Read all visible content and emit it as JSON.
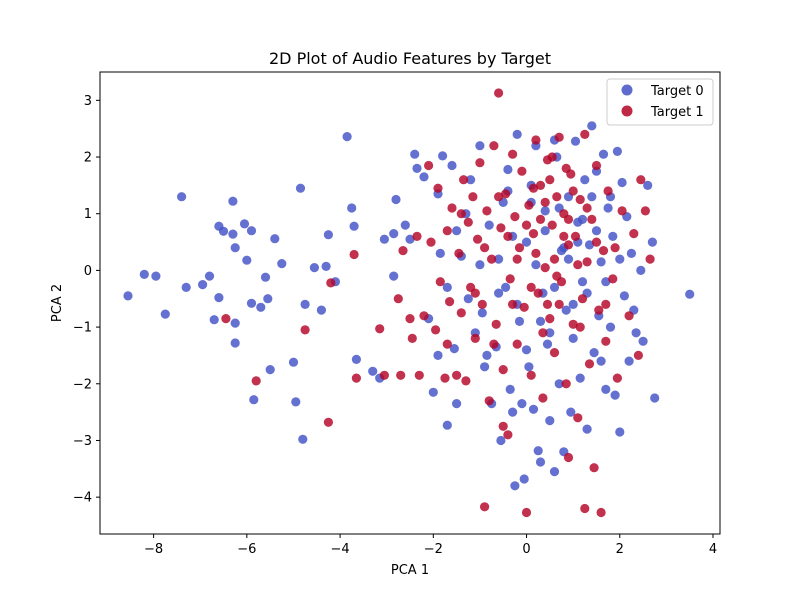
{
  "chart_data": {
    "type": "scatter",
    "title": "2D Plot of Audio Features by Target",
    "xlabel": "PCA 1",
    "ylabel": "PCA 2",
    "xlim": [
      -9.15,
      4.15
    ],
    "ylim": [
      -4.65,
      3.5
    ],
    "xticks": [
      -8,
      -6,
      -4,
      -2,
      0,
      2,
      4
    ],
    "yticks": [
      -4,
      -3,
      -2,
      -1,
      0,
      1,
      2,
      3
    ],
    "xtick_labels": [
      "−8",
      "−6",
      "−4",
      "−2",
      "0",
      "2",
      "4"
    ],
    "ytick_labels": [
      "−4",
      "−3",
      "−2",
      "−1",
      "0",
      "1",
      "2",
      "3"
    ],
    "grid": false,
    "legend_position": "top-right",
    "series": [
      {
        "name": "Target 0",
        "color": "#4352c6",
        "points": [
          [
            -8.55,
            -0.45
          ],
          [
            -8.2,
            -0.07
          ],
          [
            -7.95,
            -0.1
          ],
          [
            -7.75,
            -0.77
          ],
          [
            -7.4,
            1.3
          ],
          [
            -7.3,
            -0.3
          ],
          [
            -6.95,
            -0.25
          ],
          [
            -6.8,
            -0.1
          ],
          [
            -6.7,
            -0.87
          ],
          [
            -6.6,
            0.78
          ],
          [
            -6.6,
            -0.48
          ],
          [
            -6.5,
            0.69
          ],
          [
            -6.3,
            1.22
          ],
          [
            -6.3,
            0.64
          ],
          [
            -6.25,
            0.4
          ],
          [
            -6.25,
            -0.93
          ],
          [
            -6.25,
            -1.28
          ],
          [
            -6.05,
            0.82
          ],
          [
            -6.0,
            0.18
          ],
          [
            -5.9,
            0.7
          ],
          [
            -5.9,
            -0.58
          ],
          [
            -5.85,
            -2.28
          ],
          [
            -5.7,
            -0.65
          ],
          [
            -5.6,
            -0.12
          ],
          [
            -5.55,
            -0.5
          ],
          [
            -5.5,
            -1.75
          ],
          [
            -5.4,
            0.56
          ],
          [
            -5.25,
            0.12
          ],
          [
            -5.0,
            -1.62
          ],
          [
            -4.95,
            -2.32
          ],
          [
            -4.85,
            1.45
          ],
          [
            -4.8,
            -2.98
          ],
          [
            -4.75,
            -0.6
          ],
          [
            -4.55,
            0.05
          ],
          [
            -4.4,
            -0.7
          ],
          [
            -4.3,
            0.07
          ],
          [
            -4.25,
            0.63
          ],
          [
            -4.1,
            -0.2
          ],
          [
            -3.85,
            2.36
          ],
          [
            -3.75,
            1.1
          ],
          [
            -3.7,
            0.78
          ],
          [
            -3.65,
            -1.57
          ],
          [
            -3.3,
            -1.78
          ],
          [
            -3.15,
            -1.9
          ],
          [
            -3.05,
            0.55
          ],
          [
            -2.85,
            0.65
          ],
          [
            -2.85,
            -0.1
          ],
          [
            -2.8,
            1.25
          ],
          [
            -2.6,
            0.8
          ],
          [
            -2.5,
            0.55
          ],
          [
            -2.4,
            2.05
          ],
          [
            -2.35,
            1.8
          ],
          [
            -2.2,
            1.65
          ],
          [
            -2.1,
            -0.85
          ],
          [
            -2.0,
            -2.15
          ],
          [
            -1.9,
            1.35
          ],
          [
            -1.9,
            -1.5
          ],
          [
            -1.85,
            0.3
          ],
          [
            -1.8,
            2.02
          ],
          [
            -1.7,
            -2.73
          ],
          [
            -1.6,
            1.85
          ],
          [
            -1.55,
            -1.38
          ],
          [
            -1.5,
            -2.35
          ],
          [
            -1.4,
            0.25
          ],
          [
            -1.3,
            1.0
          ],
          [
            -1.25,
            -0.5
          ],
          [
            -1.2,
            1.6
          ],
          [
            -1.1,
            -1.1
          ],
          [
            -1.0,
            2.2
          ],
          [
            -0.95,
            -0.75
          ],
          [
            -0.85,
            -1.5
          ],
          [
            -0.75,
            -2.35
          ],
          [
            -0.65,
            -1.35
          ],
          [
            -0.6,
            0.2
          ],
          [
            -0.55,
            -3.0
          ],
          [
            -0.5,
            1.2
          ],
          [
            -0.45,
            -0.3
          ],
          [
            -0.4,
            1.78
          ],
          [
            -0.35,
            -2.1
          ],
          [
            -0.3,
            -2.5
          ],
          [
            -0.25,
            -3.8
          ],
          [
            -0.2,
            2.4
          ],
          [
            -0.15,
            -0.9
          ],
          [
            -0.1,
            -2.35
          ],
          [
            -0.05,
            -3.68
          ],
          [
            0.0,
            0.5
          ],
          [
            0.05,
            -1.7
          ],
          [
            0.1,
            1.5
          ],
          [
            0.15,
            -2.45
          ],
          [
            0.2,
            2.2
          ],
          [
            0.25,
            -3.18
          ],
          [
            0.3,
            -3.38
          ],
          [
            0.35,
            -0.4
          ],
          [
            0.4,
            1.05
          ],
          [
            0.45,
            -1.3
          ],
          [
            0.5,
            -2.65
          ],
          [
            0.6,
            -3.55
          ],
          [
            0.65,
            2.0
          ],
          [
            0.7,
            -2.0
          ],
          [
            0.75,
            0.35
          ],
          [
            0.8,
            -3.2
          ],
          [
            0.85,
            -0.7
          ],
          [
            0.9,
            1.3
          ],
          [
            0.95,
            -2.5
          ],
          [
            1.0,
            -1.2
          ],
          [
            1.05,
            2.28
          ],
          [
            1.1,
            0.85
          ],
          [
            1.15,
            -1.9
          ],
          [
            1.2,
            -0.2
          ],
          [
            1.25,
            1.6
          ],
          [
            1.3,
            -2.8
          ],
          [
            1.35,
            0.45
          ],
          [
            1.4,
            2.55
          ],
          [
            1.45,
            -1.45
          ],
          [
            1.5,
            1.75
          ],
          [
            1.55,
            -0.8
          ],
          [
            1.6,
            0.15
          ],
          [
            1.65,
            2.05
          ],
          [
            1.7,
            -2.1
          ],
          [
            1.75,
            1.1
          ],
          [
            1.8,
            -1.0
          ],
          [
            1.85,
            0.6
          ],
          [
            1.9,
            -2.2
          ],
          [
            1.95,
            2.1
          ],
          [
            2.0,
            -2.85
          ],
          [
            2.05,
            1.55
          ],
          [
            2.1,
            -0.45
          ],
          [
            2.15,
            0.95
          ],
          [
            2.2,
            -1.6
          ],
          [
            2.25,
            0.3
          ],
          [
            2.35,
            -1.1
          ],
          [
            2.45,
            0.0
          ],
          [
            2.5,
            -1.25
          ],
          [
            2.6,
            1.5
          ],
          [
            2.7,
            0.5
          ],
          [
            2.75,
            -2.25
          ],
          [
            3.5,
            -0.42
          ],
          [
            0.2,
            0.1
          ],
          [
            0.4,
            0.7
          ],
          [
            0.6,
            -0.3
          ],
          [
            0.8,
            0.4
          ],
          [
            1.0,
            -0.6
          ],
          [
            1.2,
            0.9
          ],
          [
            0.3,
            -0.9
          ],
          [
            0.9,
            0.2
          ],
          [
            1.3,
            -0.4
          ],
          [
            -0.3,
            0.6
          ],
          [
            -0.6,
            -0.4
          ],
          [
            0.1,
            1.2
          ],
          [
            0.7,
            1.1
          ],
          [
            1.5,
            0.7
          ],
          [
            1.1,
            0.5
          ],
          [
            -0.8,
            0.8
          ],
          [
            -1.0,
            0.1
          ],
          [
            -0.2,
            -0.6
          ],
          [
            0.5,
            -1.1
          ],
          [
            1.7,
            -0.2
          ],
          [
            1.4,
            1.3
          ],
          [
            0.0,
            -1.4
          ],
          [
            -0.4,
            1.4
          ],
          [
            2.0,
            0.2
          ],
          [
            1.8,
            1.3
          ],
          [
            0.6,
            2.3
          ],
          [
            -1.5,
            0.7
          ],
          [
            -1.7,
            -0.3
          ],
          [
            2.3,
            -0.7
          ],
          [
            -0.9,
            -1.7
          ],
          [
            1.6,
            -1.6
          ]
        ]
      },
      {
        "name": "Target 1",
        "color": "#b40426",
        "points": [
          [
            -6.45,
            -0.85
          ],
          [
            -5.8,
            -1.95
          ],
          [
            -4.75,
            -1.05
          ],
          [
            -4.25,
            -2.68
          ],
          [
            -4.2,
            -0.22
          ],
          [
            -3.7,
            0.28
          ],
          [
            -3.65,
            -1.9
          ],
          [
            -3.15,
            -1.03
          ],
          [
            -3.05,
            -1.85
          ],
          [
            -2.75,
            -0.5
          ],
          [
            -2.7,
            -1.85
          ],
          [
            -2.65,
            0.35
          ],
          [
            -2.5,
            -0.85
          ],
          [
            -2.45,
            -1.2
          ],
          [
            -2.35,
            0.6
          ],
          [
            -2.3,
            -1.85
          ],
          [
            -2.2,
            -0.8
          ],
          [
            -2.1,
            1.85
          ],
          [
            -2.05,
            0.5
          ],
          [
            -1.95,
            -1.05
          ],
          [
            -1.9,
            1.45
          ],
          [
            -1.85,
            -0.2
          ],
          [
            -1.75,
            -1.9
          ],
          [
            -1.7,
            0.7
          ],
          [
            -1.65,
            -0.55
          ],
          [
            -1.6,
            1.1
          ],
          [
            -1.5,
            -1.85
          ],
          [
            -1.45,
            0.3
          ],
          [
            -1.4,
            -0.75
          ],
          [
            -1.35,
            1.6
          ],
          [
            -1.3,
            -1.95
          ],
          [
            -1.25,
            0.85
          ],
          [
            -1.2,
            -0.3
          ],
          [
            -1.15,
            1.3
          ],
          [
            -1.1,
            -1.2
          ],
          [
            -1.05,
            0.55
          ],
          [
            -1.0,
            1.9
          ],
          [
            -0.95,
            -0.6
          ],
          [
            -0.9,
            -4.17
          ],
          [
            -0.85,
            1.05
          ],
          [
            -0.8,
            -2.3
          ],
          [
            -0.75,
            0.2
          ],
          [
            -0.7,
            2.2
          ],
          [
            -0.65,
            -0.95
          ],
          [
            -0.6,
            3.13
          ],
          [
            -0.55,
            0.75
          ],
          [
            -0.5,
            -1.75
          ],
          [
            -0.45,
            1.35
          ],
          [
            -0.4,
            -2.9
          ],
          [
            -0.35,
            -0.15
          ],
          [
            -0.3,
            2.05
          ],
          [
            -0.25,
            0.95
          ],
          [
            -0.2,
            -1.3
          ],
          [
            -0.15,
            0.4
          ],
          [
            -0.1,
            1.75
          ],
          [
            -0.05,
            -0.65
          ],
          [
            0.0,
            -4.27
          ],
          [
            0.05,
            1.15
          ],
          [
            0.1,
            -1.85
          ],
          [
            0.15,
            0.65
          ],
          [
            0.2,
            2.3
          ],
          [
            0.25,
            -0.4
          ],
          [
            0.3,
            1.5
          ],
          [
            0.35,
            -2.25
          ],
          [
            0.4,
            0.05
          ],
          [
            0.45,
            1.95
          ],
          [
            0.5,
            -0.85
          ],
          [
            0.55,
            0.8
          ],
          [
            0.6,
            -1.45
          ],
          [
            0.65,
            1.3
          ],
          [
            0.7,
            2.35
          ],
          [
            0.75,
            -0.2
          ],
          [
            0.8,
            1.0
          ],
          [
            0.85,
            -2.0
          ],
          [
            0.9,
            0.45
          ],
          [
            0.95,
            1.7
          ],
          [
            1.0,
            -0.95
          ],
          [
            1.05,
            0.6
          ],
          [
            1.1,
            -2.6
          ],
          [
            1.15,
            1.25
          ],
          [
            1.2,
            -0.5
          ],
          [
            1.25,
            2.4
          ],
          [
            1.3,
            0.15
          ],
          [
            1.35,
            -1.65
          ],
          [
            1.4,
            0.9
          ],
          [
            1.45,
            -3.48
          ],
          [
            1.5,
            1.85
          ],
          [
            1.55,
            -0.7
          ],
          [
            1.6,
            -4.27
          ],
          [
            1.65,
            0.35
          ],
          [
            1.7,
            -1.25
          ],
          [
            1.75,
            1.4
          ],
          [
            1.85,
            -0.15
          ],
          [
            1.95,
            -1.9
          ],
          [
            2.05,
            1.05
          ],
          [
            2.2,
            -0.8
          ],
          [
            2.3,
            0.65
          ],
          [
            2.4,
            -1.5
          ],
          [
            2.45,
            1.6
          ],
          [
            2.55,
            1.05
          ],
          [
            2.65,
            0.2
          ],
          [
            1.25,
            -4.2
          ],
          [
            0.9,
            -3.3
          ],
          [
            -0.5,
            -2.75
          ],
          [
            0.2,
            0.3
          ],
          [
            0.4,
            1.2
          ],
          [
            0.6,
            0.2
          ],
          [
            0.8,
            0.6
          ],
          [
            1.0,
            1.4
          ],
          [
            0.3,
            0.9
          ],
          [
            0.7,
            -0.6
          ],
          [
            0.1,
            -0.3
          ],
          [
            -0.2,
            0.2
          ],
          [
            0.5,
            1.6
          ],
          [
            0.9,
            0.9
          ],
          [
            1.1,
            0.1
          ],
          [
            -0.4,
            0.6
          ],
          [
            -0.6,
            1.3
          ],
          [
            0.0,
            0.8
          ],
          [
            0.35,
            -1.1
          ],
          [
            1.3,
            1.1
          ],
          [
            1.5,
            0.5
          ],
          [
            0.65,
            -0.1
          ],
          [
            0.15,
            1.45
          ],
          [
            -0.9,
            0.4
          ],
          [
            -1.1,
            -0.4
          ],
          [
            0.55,
            2.0
          ],
          [
            0.85,
            1.8
          ],
          [
            1.9,
            0.4
          ],
          [
            -0.7,
            -1.3
          ],
          [
            1.7,
            -0.6
          ],
          [
            -0.3,
            -0.6
          ],
          [
            0.45,
            -0.6
          ],
          [
            1.15,
            -1.0
          ],
          [
            -1.4,
            1.0
          ],
          [
            -1.7,
            -1.3
          ]
        ]
      }
    ]
  }
}
